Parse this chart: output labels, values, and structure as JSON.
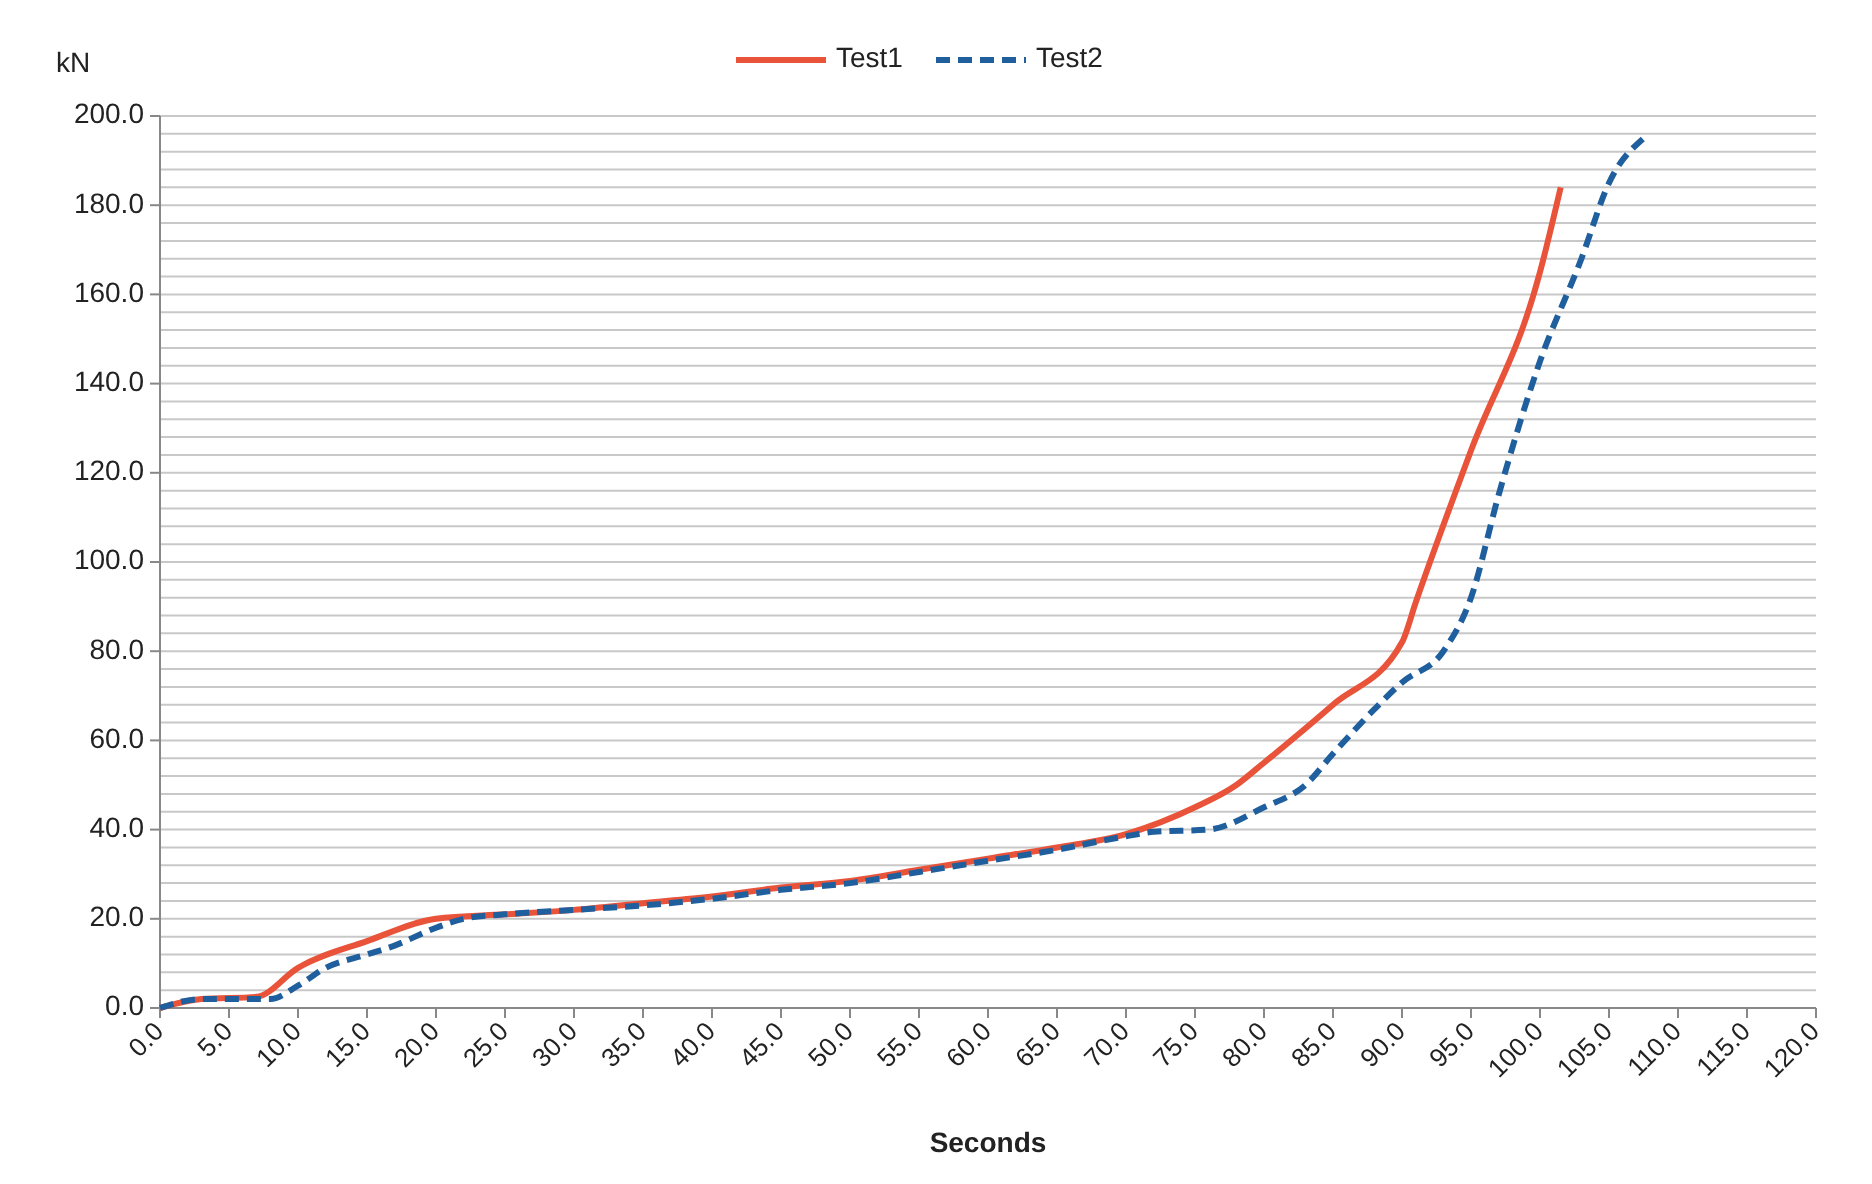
{
  "chart_data": {
    "type": "line",
    "xlabel": "Seconds",
    "ylabel": "kN",
    "legend": "top",
    "grid": "y",
    "xlim": [
      0,
      120
    ],
    "xticks": [
      {
        "value": 0,
        "label": "0.0"
      },
      {
        "value": 5,
        "label": "5.0"
      },
      {
        "value": 10,
        "label": "10.0"
      },
      {
        "value": 15,
        "label": "15.0"
      },
      {
        "value": 20,
        "label": "20.0"
      },
      {
        "value": 25,
        "label": "25.0"
      },
      {
        "value": 30,
        "label": "30.0"
      },
      {
        "value": 35,
        "label": "35.0"
      },
      {
        "value": 40,
        "label": "40.0"
      },
      {
        "value": 45,
        "label": "45.0"
      },
      {
        "value": 50,
        "label": "50.0"
      },
      {
        "value": 55,
        "label": "55.0"
      },
      {
        "value": 60,
        "label": "60.0"
      },
      {
        "value": 65,
        "label": "65.0"
      },
      {
        "value": 70,
        "label": "70.0"
      },
      {
        "value": 75,
        "label": "75.0"
      },
      {
        "value": 80,
        "label": "80.0"
      },
      {
        "value": 85,
        "label": "85.0"
      },
      {
        "value": 90,
        "label": "90.0"
      },
      {
        "value": 95,
        "label": "95.0"
      },
      {
        "value": 100,
        "label": "100.0"
      },
      {
        "value": 105,
        "label": "105.0"
      },
      {
        "value": 110,
        "label": "110.0"
      },
      {
        "value": 115,
        "label": "115.0"
      },
      {
        "value": 120,
        "label": "120.0"
      }
    ],
    "ylim": [
      0,
      200
    ],
    "yticks": [
      {
        "value": 0,
        "label": "0.0"
      },
      {
        "value": 4,
        "label": null
      },
      {
        "value": 8,
        "label": null
      },
      {
        "value": 12,
        "label": null
      },
      {
        "value": 16,
        "label": null
      },
      {
        "value": 20,
        "label": "20.0"
      },
      {
        "value": 24,
        "label": null
      },
      {
        "value": 28,
        "label": null
      },
      {
        "value": 32,
        "label": null
      },
      {
        "value": 36,
        "label": null
      },
      {
        "value": 40,
        "label": "40.0"
      },
      {
        "value": 44,
        "label": null
      },
      {
        "value": 48,
        "label": null
      },
      {
        "value": 52,
        "label": null
      },
      {
        "value": 56,
        "label": null
      },
      {
        "value": 60,
        "label": "60.0"
      },
      {
        "value": 64,
        "label": null
      },
      {
        "value": 68,
        "label": null
      },
      {
        "value": 72,
        "label": null
      },
      {
        "value": 76,
        "label": null
      },
      {
        "value": 80,
        "label": "80.0"
      },
      {
        "value": 84,
        "label": null
      },
      {
        "value": 88,
        "label": null
      },
      {
        "value": 92,
        "label": null
      },
      {
        "value": 96,
        "label": null
      },
      {
        "value": 100,
        "label": "100.0"
      },
      {
        "value": 104,
        "label": null
      },
      {
        "value": 108,
        "label": null
      },
      {
        "value": 112,
        "label": null
      },
      {
        "value": 116,
        "label": null
      },
      {
        "value": 120,
        "label": "120.0"
      },
      {
        "value": 124,
        "label": null
      },
      {
        "value": 128,
        "label": null
      },
      {
        "value": 132,
        "label": null
      },
      {
        "value": 136,
        "label": null
      },
      {
        "value": 140,
        "label": "140.0"
      },
      {
        "value": 144,
        "label": null
      },
      {
        "value": 148,
        "label": null
      },
      {
        "value": 152,
        "label": null
      },
      {
        "value": 156,
        "label": null
      },
      {
        "value": 160,
        "label": "160.0"
      },
      {
        "value": 164,
        "label": null
      },
      {
        "value": 168,
        "label": null
      },
      {
        "value": 172,
        "label": null
      },
      {
        "value": 176,
        "label": null
      },
      {
        "value": 180,
        "label": "180.0"
      },
      {
        "value": 184,
        "label": null
      },
      {
        "value": 188,
        "label": null
      },
      {
        "value": 192,
        "label": null
      },
      {
        "value": 196,
        "label": null
      },
      {
        "value": 200,
        "label": "200.0"
      }
    ],
    "series": [
      {
        "name": "Test1",
        "color": "#e8533a",
        "line_style": "solid",
        "x": [
          0,
          3,
          7,
          10,
          15,
          20,
          25,
          30,
          35,
          40,
          45,
          50,
          55,
          60,
          65,
          70,
          75,
          78,
          80,
          85,
          90,
          91,
          95,
          100,
          101.5
        ],
        "values": [
          0,
          2,
          2.5,
          9,
          15,
          20,
          21,
          22,
          23.5,
          25,
          27,
          28.5,
          31,
          33.5,
          36,
          39,
          45,
          50,
          55,
          68,
          82,
          91,
          125,
          165,
          184
        ]
      },
      {
        "name": "Test2",
        "color": "#1f5f9e",
        "line_style": "dashed",
        "x": [
          0,
          3,
          8,
          10,
          12,
          15,
          17,
          20,
          22,
          25,
          30,
          35,
          40,
          45,
          50,
          55,
          60,
          65,
          70,
          72,
          76,
          80,
          83,
          85,
          88,
          90,
          93,
          95,
          97,
          100,
          103,
          105,
          107.5
        ],
        "values": [
          0,
          2,
          2,
          5,
          9,
          12,
          14,
          18,
          20,
          21,
          22,
          23,
          24.5,
          26.5,
          28,
          30.5,
          33,
          35.5,
          38.5,
          39.5,
          40,
          45,
          50,
          57,
          67,
          73,
          80,
          92,
          115,
          145,
          168,
          185,
          195
        ]
      }
    ]
  }
}
